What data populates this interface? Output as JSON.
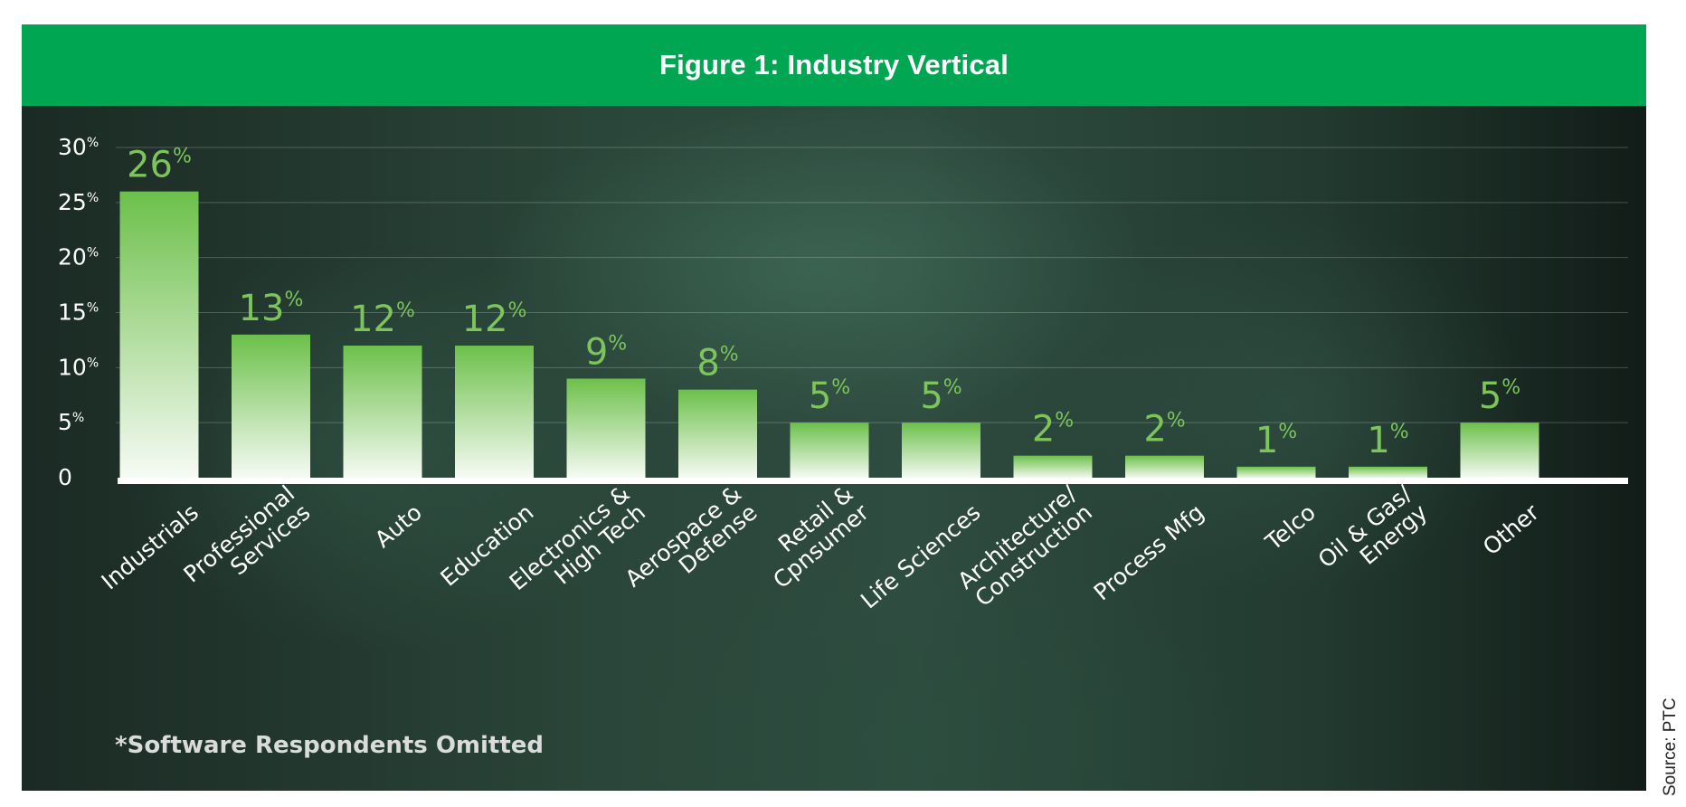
{
  "title": "Figure 1: Industry Vertical",
  "footnote": "*Software Respondents Omitted",
  "source": "Source: PTC",
  "colors": {
    "header": "#00a651",
    "bar_top": "#6cc04a",
    "bar_bottom": "#f7fbf5",
    "value_label": "#7dc55b",
    "axis": "#ffffff"
  },
  "chart_data": {
    "type": "bar",
    "title": "Figure 1: Industry Vertical",
    "xlabel": "",
    "ylabel": "",
    "ylim": [
      0,
      30
    ],
    "grid": true,
    "y_ticks": [
      {
        "value": 0,
        "label": "0",
        "unit": ""
      },
      {
        "value": 5,
        "label": "5",
        "unit": "%"
      },
      {
        "value": 10,
        "label": "10",
        "unit": "%"
      },
      {
        "value": 15,
        "label": "15",
        "unit": "%"
      },
      {
        "value": 20,
        "label": "20",
        "unit": "%"
      },
      {
        "value": 25,
        "label": "25",
        "unit": "%"
      },
      {
        "value": 30,
        "label": "30",
        "unit": "%"
      }
    ],
    "categories": [
      [
        "Industrials"
      ],
      [
        "Professional",
        "Services"
      ],
      [
        "Auto"
      ],
      [
        "Education"
      ],
      [
        "Electronics &",
        "High Tech"
      ],
      [
        "Aerospace &",
        "Defense"
      ],
      [
        "Retail &",
        "Cpnsumer"
      ],
      [
        "Life Sciences"
      ],
      [
        "Architecture/",
        "Construction"
      ],
      [
        "Process Mfg"
      ],
      [
        "Telco"
      ],
      [
        "Oil & Gas/",
        "Energy"
      ],
      [
        "Other"
      ]
    ],
    "values": [
      26,
      13,
      12,
      12,
      9,
      8,
      5,
      5,
      2,
      2,
      1,
      1,
      5
    ],
    "value_unit": "%"
  }
}
